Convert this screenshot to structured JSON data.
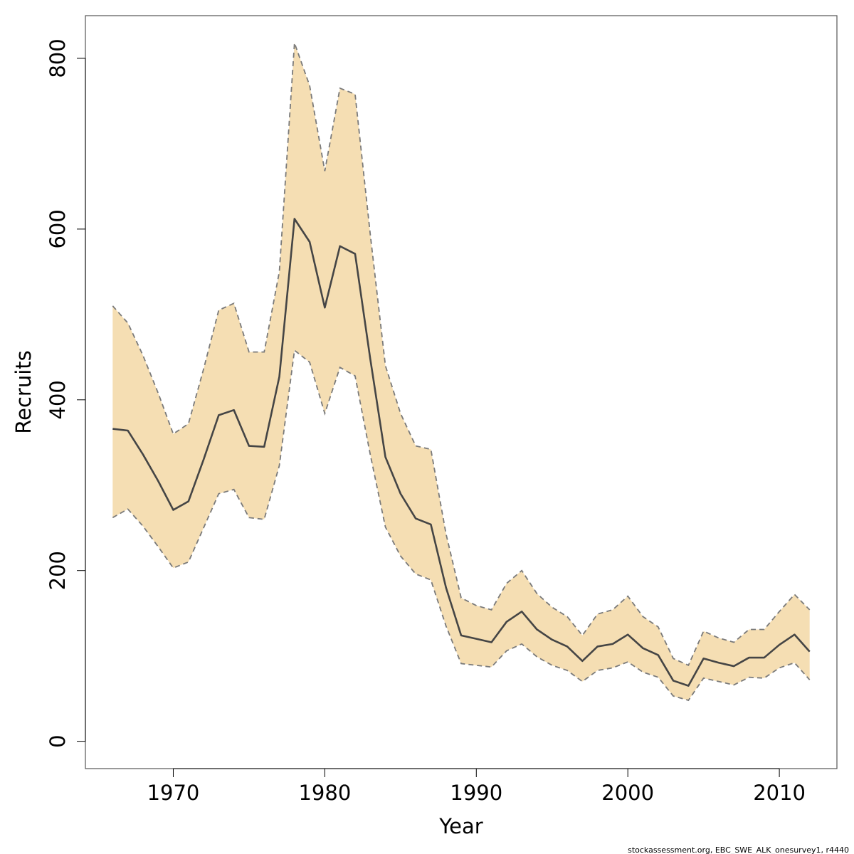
{
  "chart_data": {
    "type": "line",
    "xlabel": "Year",
    "ylabel": "Recruits",
    "xlim": [
      1964.2,
      2013.8
    ],
    "ylim": [
      -32,
      850
    ],
    "x_ticks": [
      1970,
      1980,
      1990,
      2000,
      2010
    ],
    "y_ticks": [
      0,
      200,
      400,
      600,
      800
    ],
    "x_tick_labels": [
      "1970",
      "1980",
      "1990",
      "2000",
      "2010"
    ],
    "y_tick_labels": [
      "0",
      "200",
      "400",
      "600",
      "800"
    ],
    "grid": false,
    "x": [
      1966,
      1967,
      1968,
      1969,
      1970,
      1971,
      1972,
      1973,
      1974,
      1975,
      1976,
      1977,
      1978,
      1979,
      1980,
      1981,
      1982,
      1983,
      1984,
      1985,
      1986,
      1987,
      1988,
      1989,
      1990,
      1991,
      1992,
      1993,
      1994,
      1995,
      1996,
      1997,
      1998,
      1999,
      2000,
      2001,
      2002,
      2003,
      2004,
      2005,
      2006,
      2007,
      2008,
      2009,
      2010,
      2011,
      2012
    ],
    "series": [
      {
        "role": "estimate",
        "values": [
          366,
          364,
          336,
          305,
          271,
          281,
          330,
          382,
          388,
          346,
          345,
          427,
          612,
          585,
          508,
          580,
          571,
          448,
          333,
          290,
          261,
          254,
          180,
          124,
          120,
          116,
          140,
          152,
          131,
          119,
          111,
          94,
          111,
          114,
          125,
          109,
          101,
          71,
          65,
          97,
          92,
          88,
          98,
          98,
          113,
          125,
          105
        ]
      },
      {
        "role": "upper",
        "values": [
          510,
          490,
          452,
          408,
          360,
          372,
          436,
          505,
          513,
          456,
          456,
          550,
          818,
          768,
          668,
          765,
          758,
          594,
          440,
          384,
          346,
          342,
          243,
          168,
          159,
          154,
          185,
          200,
          173,
          157,
          146,
          124,
          149,
          154,
          170,
          146,
          134,
          97,
          89,
          129,
          121,
          116,
          131,
          131,
          152,
          172,
          154
        ]
      },
      {
        "role": "lower",
        "values": [
          262,
          272,
          252,
          228,
          203,
          210,
          250,
          290,
          295,
          262,
          260,
          323,
          458,
          444,
          384,
          438,
          428,
          336,
          251,
          217,
          196,
          189,
          135,
          91,
          89,
          87,
          106,
          114,
          99,
          89,
          83,
          70,
          83,
          86,
          93,
          81,
          75,
          53,
          48,
          74,
          70,
          66,
          75,
          74,
          86,
          92,
          72
        ]
      }
    ]
  },
  "footer": {
    "source": "stockassessment.org, EBC_SWE_ALK_onesurvey1, r4440"
  },
  "colors": {
    "band_fill": "#f5deb3",
    "line": "#454545",
    "bound_line": "#7a7a7a",
    "axis": "#000000",
    "plot_border": "#555555"
  }
}
